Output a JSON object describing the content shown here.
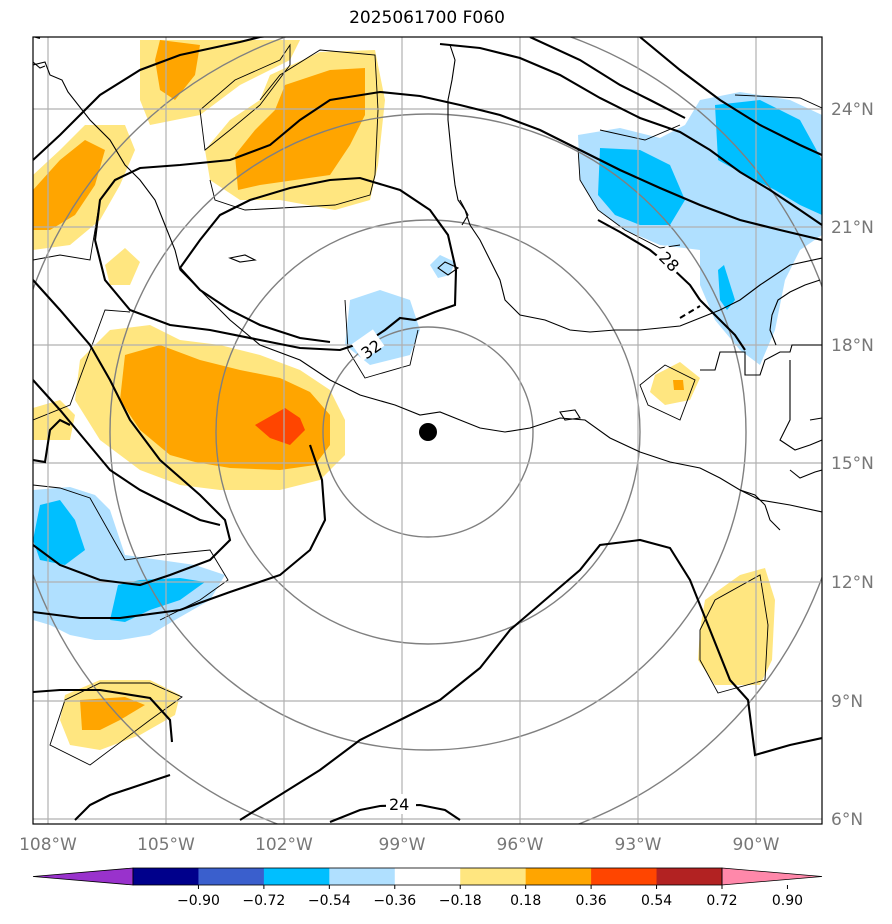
{
  "title": "2025061700 F060",
  "map": {
    "lon_ticks": [
      "108°W",
      "105°W",
      "102°W",
      "99°W",
      "96°W",
      "93°W",
      "90°W"
    ],
    "lat_ticks": [
      "24°N",
      "21°N",
      "18°N",
      "15°N",
      "12°N",
      "9°N",
      "6°N"
    ],
    "contour_labels": [
      "32",
      "28",
      "24"
    ],
    "storm_center": {
      "lon": -98.4,
      "lat": 15.8
    }
  },
  "colorbar": {
    "labels": [
      "−0.90",
      "−0.72",
      "−0.54",
      "−0.36",
      "−0.18",
      "0.18",
      "0.36",
      "0.54",
      "0.72",
      "0.90"
    ],
    "colors": [
      "#9932cc",
      "#00008b",
      "#3a5fcd",
      "#00bfff",
      "#b0e0ff",
      "#ffffff",
      "#ffe680",
      "#ffa500",
      "#ff4500",
      "#b22222",
      "#ff88aa"
    ]
  }
}
